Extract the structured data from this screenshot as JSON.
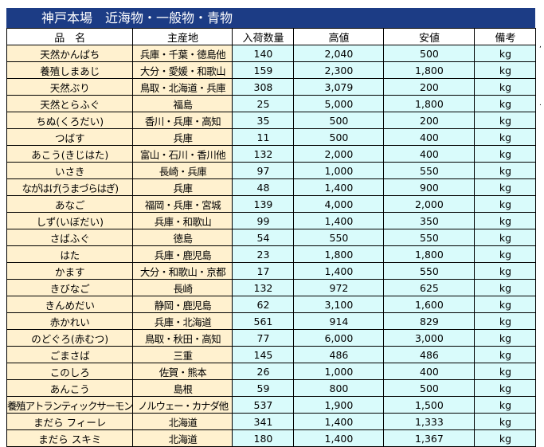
{
  "title": "神戸本場　近海物・一般物・青物",
  "headers": {
    "name": "品　名",
    "origin": "主産地",
    "quantity": "入荷数量",
    "high": "高値",
    "low": "安値",
    "note": "備考"
  },
  "rows": [
    {
      "name": "天然かんぱち",
      "origin": "兵庫・千葉・徳島他",
      "quantity": "140",
      "high": "2,040",
      "low": "500",
      "unit": "kg"
    },
    {
      "name": "養殖しまあじ",
      "origin": "大分・愛媛・和歌山",
      "quantity": "159",
      "high": "2,300",
      "low": "1,800",
      "unit": "kg"
    },
    {
      "name": "天然ぶり",
      "origin": "鳥取・北海道・兵庫",
      "quantity": "308",
      "high": "3,079",
      "low": "200",
      "unit": "kg"
    },
    {
      "name": "天然とらふぐ",
      "origin": "福島",
      "quantity": "25",
      "high": "5,000",
      "low": "1,800",
      "unit": "kg"
    },
    {
      "name": "ちぬ(くろだい)",
      "origin": "香川・兵庫・高知",
      "quantity": "35",
      "high": "500",
      "low": "200",
      "unit": "kg"
    },
    {
      "name": "つばす",
      "origin": "兵庫",
      "quantity": "11",
      "high": "500",
      "low": "400",
      "unit": "kg"
    },
    {
      "name": "あこう(きじはた)",
      "origin": "富山・石川・香川他",
      "quantity": "132",
      "high": "2,000",
      "low": "400",
      "unit": "kg"
    },
    {
      "name": "いさき",
      "origin": "長崎・兵庫",
      "quantity": "97",
      "high": "1,000",
      "low": "550",
      "unit": "kg"
    },
    {
      "name": "ながはげ(うまづらはぎ)",
      "origin": "兵庫",
      "quantity": "48",
      "high": "1,400",
      "low": "900",
      "unit": "kg"
    },
    {
      "name": "あなご",
      "origin": "福岡・兵庫・宮城",
      "quantity": "139",
      "high": "4,000",
      "low": "2,000",
      "unit": "kg"
    },
    {
      "name": "しず(いぼだい)",
      "origin": "兵庫・和歌山",
      "quantity": "99",
      "high": "1,400",
      "low": "350",
      "unit": "kg"
    },
    {
      "name": "さばふぐ",
      "origin": "徳島",
      "quantity": "54",
      "high": "550",
      "low": "550",
      "unit": "kg"
    },
    {
      "name": "はた",
      "origin": "兵庫・鹿児島",
      "quantity": "23",
      "high": "1,800",
      "low": "1,800",
      "unit": "kg"
    },
    {
      "name": "かます",
      "origin": "大分・和歌山・京都",
      "quantity": "17",
      "high": "1,400",
      "low": "550",
      "unit": "kg"
    },
    {
      "name": "きびなご",
      "origin": "長崎",
      "quantity": "132",
      "high": "972",
      "low": "625",
      "unit": "kg"
    },
    {
      "name": "きんめだい",
      "origin": "静岡・鹿児島",
      "quantity": "62",
      "high": "3,100",
      "low": "1,600",
      "unit": "kg"
    },
    {
      "name": "赤かれい",
      "origin": "兵庫・北海道",
      "quantity": "561",
      "high": "914",
      "low": "829",
      "unit": "kg"
    },
    {
      "name": "のどぐろ(赤むつ)",
      "origin": "鳥取・秋田・高知",
      "quantity": "77",
      "high": "6,000",
      "low": "3,000",
      "unit": "kg"
    },
    {
      "name": "ごまさば",
      "origin": "三重",
      "quantity": "145",
      "high": "486",
      "low": "486",
      "unit": "kg"
    },
    {
      "name": "このしろ",
      "origin": "佐賀・熊本",
      "quantity": "26",
      "high": "1,000",
      "low": "400",
      "unit": "kg"
    },
    {
      "name": "あんこう",
      "origin": "島根",
      "quantity": "59",
      "high": "800",
      "low": "500",
      "unit": "kg"
    },
    {
      "name": "養殖アトランティックサーモン",
      "origin": "ノルウェー・カナダ他",
      "quantity": "537",
      "high": "1,900",
      "low": "1,500",
      "unit": "kg"
    },
    {
      "name": "まだら フィーレ",
      "origin": "北海道",
      "quantity": "341",
      "high": "1,400",
      "low": "1,333",
      "unit": "kg"
    },
    {
      "name": "まだら スキミ",
      "origin": "北海道",
      "quantity": "180",
      "high": "1,400",
      "low": "1,367",
      "unit": "kg"
    }
  ],
  "side_marks": [
    ",",
    "."
  ]
}
